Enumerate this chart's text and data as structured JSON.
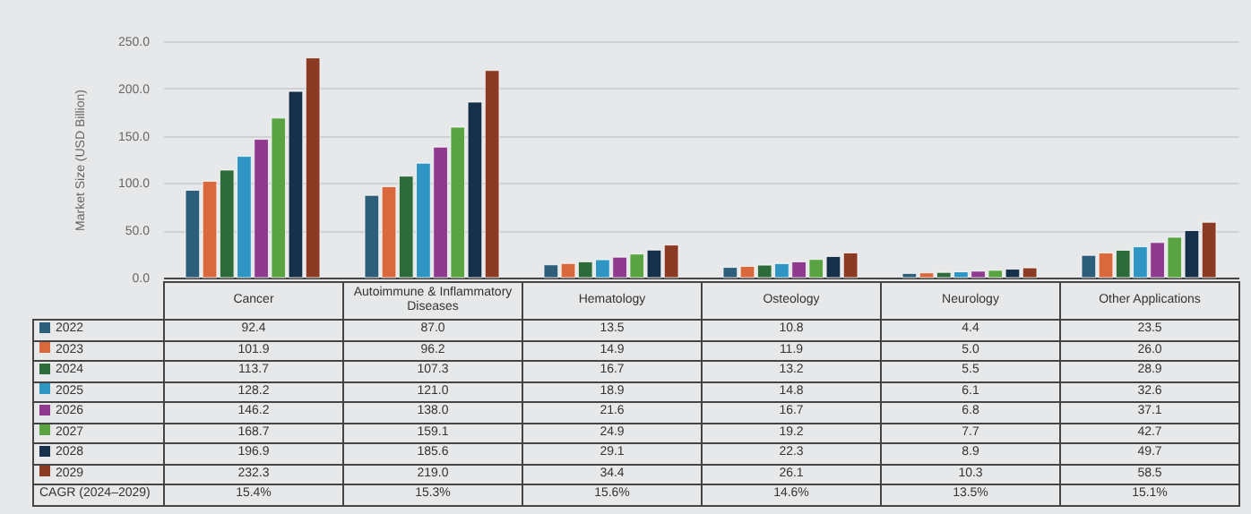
{
  "chart_data": {
    "type": "bar",
    "ylabel": "Market Size (USD Billion)",
    "categories": [
      "Cancer",
      "Autoimmune & Inflammatory Diseases",
      "Hematology",
      "Osteology",
      "Neurology",
      "Other Applications"
    ],
    "series": [
      {
        "name": "2022",
        "color": "#2e5f7a",
        "values": [
          92.4,
          87.0,
          13.5,
          10.8,
          4.4,
          23.5
        ],
        "value_labels": [
          "92.4",
          "87.0",
          "13.5",
          "10.8",
          "4.4",
          "23.5"
        ]
      },
      {
        "name": "2023",
        "color": "#d9693c",
        "values": [
          101.9,
          96.2,
          14.9,
          11.9,
          5.0,
          26.0
        ],
        "value_labels": [
          "101.9",
          "96.2",
          "14.9",
          "11.9",
          "5.0",
          "26.0"
        ]
      },
      {
        "name": "2024",
        "color": "#2e6b3a",
        "values": [
          113.7,
          107.3,
          16.7,
          13.2,
          5.5,
          28.9
        ],
        "value_labels": [
          "113.7",
          "107.3",
          "16.7",
          "13.2",
          "5.5",
          "28.9"
        ]
      },
      {
        "name": "2025",
        "color": "#2f96c4",
        "values": [
          128.2,
          121.0,
          18.9,
          14.8,
          6.1,
          32.6
        ],
        "value_labels": [
          "128.2",
          "121.0",
          "18.9",
          "14.8",
          "6.1",
          "32.6"
        ]
      },
      {
        "name": "2026",
        "color": "#8e3a8e",
        "values": [
          146.2,
          138.0,
          21.6,
          16.7,
          6.8,
          37.1
        ],
        "value_labels": [
          "146.2",
          "138.0",
          "21.6",
          "16.7",
          "6.8",
          "37.1"
        ]
      },
      {
        "name": "2027",
        "color": "#5aa343",
        "values": [
          168.7,
          159.1,
          24.9,
          19.2,
          7.7,
          42.7
        ],
        "value_labels": [
          "168.7",
          "159.1",
          "24.9",
          "19.2",
          "7.7",
          "42.7"
        ]
      },
      {
        "name": "2028",
        "color": "#16304a",
        "values": [
          196.9,
          185.6,
          29.1,
          22.3,
          8.9,
          49.7
        ],
        "value_labels": [
          "196.9",
          "185.6",
          "29.1",
          "22.3",
          "8.9",
          "49.7"
        ]
      },
      {
        "name": "2029",
        "color": "#8b3a24",
        "values": [
          232.3,
          219.0,
          34.4,
          26.1,
          10.3,
          58.5
        ],
        "value_labels": [
          "232.3",
          "219.0",
          "34.4",
          "26.1",
          "10.3",
          "58.5"
        ]
      }
    ],
    "ylim": [
      0,
      250
    ],
    "yticks": [
      {
        "value": 0,
        "label": "0.0"
      },
      {
        "value": 50,
        "label": "50.0"
      },
      {
        "value": 100,
        "label": "100.0"
      },
      {
        "value": 150,
        "label": "150.0"
      },
      {
        "value": 200,
        "label": "200.0"
      },
      {
        "value": 250,
        "label": "250.0"
      }
    ],
    "grid": "y",
    "legend": "bottom",
    "annotations": [
      "CAGR (2024–2029)",
      "15.4%",
      "15.3%",
      "15.6%",
      "14.6%",
      "13.5%",
      "15.1%"
    ]
  }
}
